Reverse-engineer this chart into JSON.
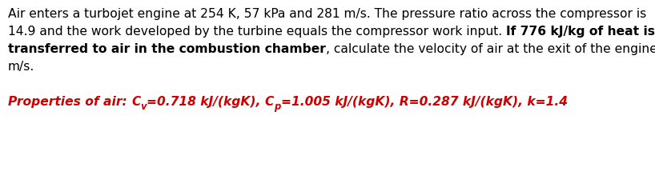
{
  "background_color": "#ffffff",
  "fig_width": 8.18,
  "fig_height": 2.34,
  "dpi": 100,
  "line1": "Air enters a turbojet engine at 254 K, 57 kPa and 281 m/s. The pressure ratio across the compressor is",
  "line2_normal": "14.9 and the work developed by the turbine equals the compressor work input. ",
  "line2_bold": "If 776 kJ/kg of heat is",
  "line3_bold": "transferred to air in the combustion chamber",
  "line3_normal": ", calculate the velocity of air at the exit of the engine, in",
  "line4": "m/s.",
  "props_pre": "Properties of air: ",
  "props_cv": "C",
  "props_cv_sub": "v",
  "props_mid1": "=0.718 kJ/(kgK), ",
  "props_cp": "C",
  "props_cp_sub": "p",
  "props_mid2": "=1.005 kJ/(kgK), R=0.287 kJ/(kgK), k=1.4",
  "black": "#000000",
  "red": "#cc0000",
  "fs": 11.2,
  "fs_sub": 8.4
}
